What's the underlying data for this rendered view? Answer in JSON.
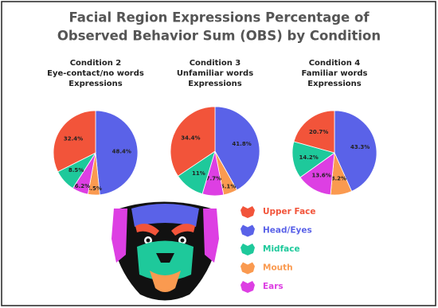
{
  "title": [
    "Facial Region Expressions Percentage of",
    "Observed Behavior Sum (OBS) by Condition"
  ],
  "chart_data": [
    {
      "type": "pie",
      "title": [
        "Condition 2",
        "Eye-contact/no words",
        "Expressions"
      ],
      "categories": [
        "Head/Eyes",
        "Mouth",
        "Ears",
        "Midface",
        "Upper Face"
      ],
      "colors": [
        "#5a62e8",
        "#fa9a50",
        "#dd3fe3",
        "#1ec99b",
        "#f2543a"
      ],
      "values": [
        48.4,
        4.5,
        6.2,
        8.5,
        32.4
      ],
      "value_labels": [
        "48.4%",
        "4.5%",
        "6.2%",
        "8.5%",
        "32.4%"
      ]
    },
    {
      "type": "pie",
      "title": [
        "Condition 3",
        "Unfamiliar words",
        "Expressions"
      ],
      "categories": [
        "Head/Eyes",
        "Mouth",
        "Ears",
        "Midface",
        "Upper Face"
      ],
      "colors": [
        "#5a62e8",
        "#fa9a50",
        "#dd3fe3",
        "#1ec99b",
        "#f2543a"
      ],
      "values": [
        41.8,
        5.1,
        7.7,
        11,
        34.4
      ],
      "value_labels": [
        "41.8%",
        "5.1%",
        "7.7%",
        "11%",
        "34.4%"
      ]
    },
    {
      "type": "pie",
      "title": [
        "Condition 4",
        "Familiar words",
        "Expressions"
      ],
      "categories": [
        "Head/Eyes",
        "Mouth",
        "Ears",
        "Midface",
        "Upper Face"
      ],
      "colors": [
        "#5a62e8",
        "#fa9a50",
        "#dd3fe3",
        "#1ec99b",
        "#f2543a"
      ],
      "values": [
        43.3,
        8.2,
        13.6,
        14.2,
        20.7
      ],
      "value_labels": [
        "43.3%",
        "8.2%",
        "13.6%",
        "14.2%",
        "20.7%"
      ]
    }
  ]
}
